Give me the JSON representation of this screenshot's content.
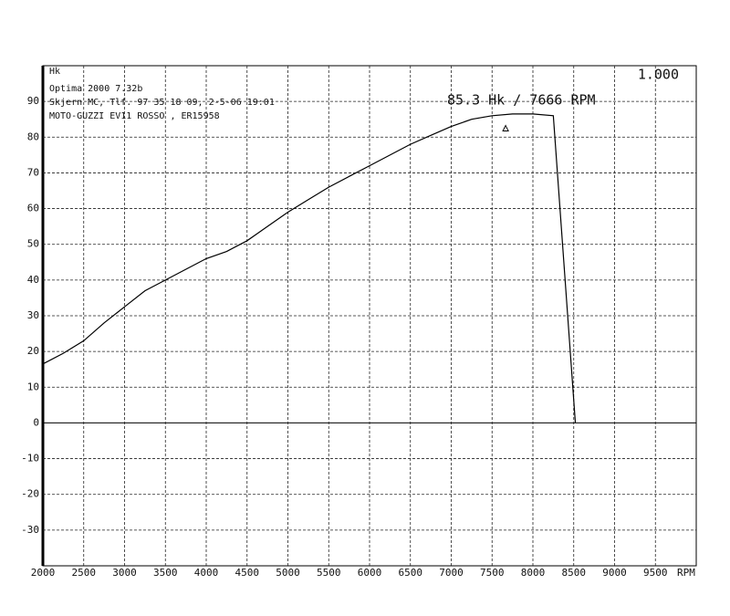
{
  "chart_data": {
    "type": "line",
    "y_label": "Hk",
    "x_label": "RPM",
    "header_lines": [
      "Optima 2000 7.32b",
      "Skjern MC, Tlf. 97 35 18 09, 2-5-06  19:01",
      "MOTO-GUZZI EV11 ROSSO , ER15958"
    ],
    "scale_label": "1.000",
    "peak_label": "85.3 Hk  / 7666 RPM",
    "peak": {
      "x": 7666,
      "y": 85.3
    },
    "x": [
      2000,
      2250,
      2500,
      2750,
      3000,
      3250,
      3500,
      3750,
      4000,
      4250,
      4500,
      4750,
      5000,
      5250,
      5500,
      5750,
      6000,
      6250,
      6500,
      6750,
      7000,
      7250,
      7500,
      7750,
      8000,
      8250,
      8520
    ],
    "values": [
      16.5,
      19.5,
      23,
      28,
      32.5,
      37,
      40,
      43,
      46,
      48,
      51,
      55,
      59,
      62.5,
      66,
      69,
      72,
      75,
      78,
      80.5,
      83,
      85,
      86,
      86.5,
      86.5,
      86,
      0
    ],
    "color": "#000000",
    "xlim": [
      2000,
      10000
    ],
    "xticks": [
      2000,
      2500,
      3000,
      3500,
      4000,
      4500,
      5000,
      5500,
      6000,
      6500,
      7000,
      7500,
      8000,
      8500,
      9000,
      9500
    ],
    "ylim": [
      -40,
      100
    ],
    "yticks": [
      -30,
      -20,
      -10,
      0,
      10,
      20,
      30,
      40,
      50,
      60,
      70,
      80,
      90
    ],
    "grid": true
  }
}
